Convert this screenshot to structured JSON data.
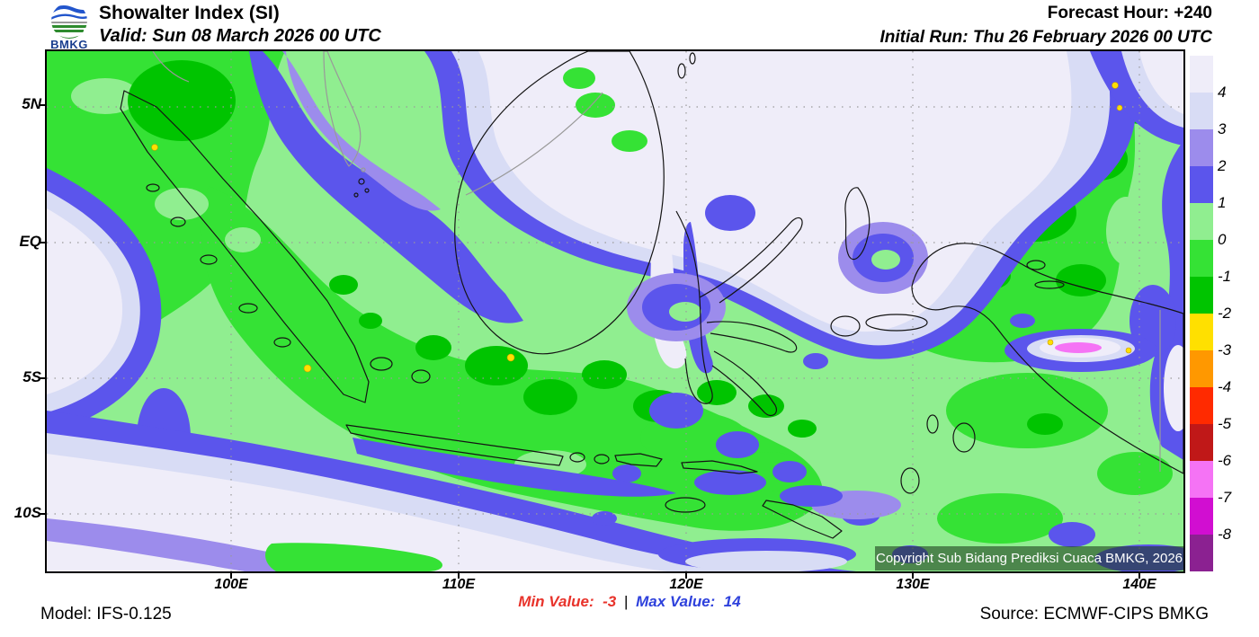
{
  "header": {
    "logo_text": "BMKG",
    "title": "Showalter Index (SI)",
    "valid": "Valid: Sun 08 March 2026 00 UTC",
    "forecast_hour": "Forecast Hour: +240",
    "initial_run": "Initial Run: Thu 26 February 2026 00 UTC"
  },
  "map": {
    "lat_ticks": [
      "5N",
      "EQ",
      "5S",
      "10S"
    ],
    "lon_ticks": [
      "100E",
      "110E",
      "120E",
      "130E",
      "140E"
    ],
    "copyright": "Copyright Sub Bidang Prediksi Cuaca BMKG, 2026"
  },
  "legend": {
    "segments": [
      {
        "color": "#EFEDF9",
        "label": "4"
      },
      {
        "color": "#D8DCF5",
        "label": "3"
      },
      {
        "color": "#9C8CEC",
        "label": "2"
      },
      {
        "color": "#5B55EC",
        "label": "1"
      },
      {
        "color": "#90EE90",
        "label": "0"
      },
      {
        "color": "#35E235",
        "label": "-1"
      },
      {
        "color": "#00C400",
        "label": "-2"
      },
      {
        "color": "#FFE000",
        "label": "-3"
      },
      {
        "color": "#FF9800",
        "label": "-4"
      },
      {
        "color": "#FF2A00",
        "label": "-5"
      },
      {
        "color": "#C01818",
        "label": "-6"
      },
      {
        "color": "#F573F5",
        "label": "-7"
      },
      {
        "color": "#D10ED1",
        "label": "-8"
      },
      {
        "color": "#8B2191",
        "label": ""
      }
    ]
  },
  "footer": {
    "model": "Model: IFS-0.125",
    "min_label": "Min Value:",
    "min_value": "-3",
    "separator": "|",
    "max_label": "Max Value:",
    "max_value": "14",
    "source": "Source: ECMWF-CIPS BMKG",
    "min_color": "#E8332B",
    "max_color": "#2E41DC"
  }
}
